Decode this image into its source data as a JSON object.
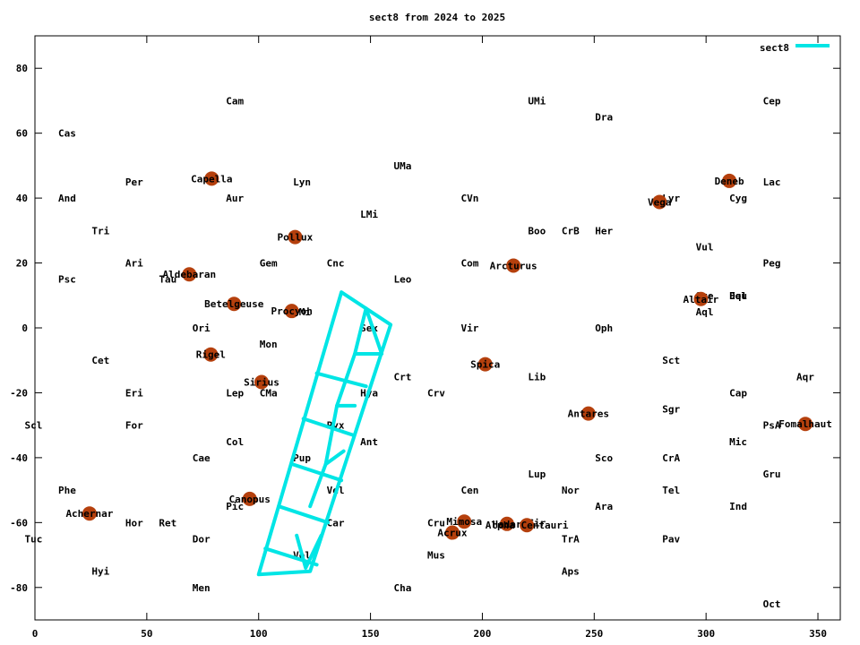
{
  "chart_data": {
    "type": "scatter",
    "title": "sect8 from 2024 to 2025",
    "xlabel": "",
    "ylabel": "",
    "xlim": [
      0,
      360
    ],
    "ylim": [
      -90,
      90
    ],
    "xticks": [
      0,
      50,
      100,
      150,
      200,
      250,
      300,
      350
    ],
    "yticks": [
      -80,
      -60,
      -40,
      -20,
      0,
      20,
      40,
      60,
      80
    ],
    "grid": false,
    "legend_position": "top-right",
    "legend": [
      {
        "name": "sect8",
        "color": "#00e5e5"
      }
    ],
    "stars": [
      {
        "name": "Capella",
        "x": 79,
        "y": 46
      },
      {
        "name": "Aldebaran",
        "x": 69,
        "y": 16.5
      },
      {
        "name": "Betelgeuse",
        "x": 89,
        "y": 7.4
      },
      {
        "name": "Rigel",
        "x": 78.6,
        "y": -8.2
      },
      {
        "name": "Sirius",
        "x": 101.3,
        "y": -16.7
      },
      {
        "name": "Canopus",
        "x": 96,
        "y": -52.7
      },
      {
        "name": "Achernar",
        "x": 24.4,
        "y": -57.2
      },
      {
        "name": "Pollux",
        "x": 116.3,
        "y": 28
      },
      {
        "name": "Procyon",
        "x": 114.8,
        "y": 5.2
      },
      {
        "name": "Arcturus",
        "x": 213.9,
        "y": 19.2
      },
      {
        "name": "Spica",
        "x": 201.3,
        "y": -11.2
      },
      {
        "name": "Antares",
        "x": 247.4,
        "y": -26.4
      },
      {
        "name": "Vega",
        "x": 279.2,
        "y": 38.8
      },
      {
        "name": "Deneb",
        "x": 310.4,
        "y": 45.3
      },
      {
        "name": "Altair",
        "x": 297.7,
        "y": 8.9
      },
      {
        "name": "Fomalhaut",
        "x": 344.4,
        "y": -29.6
      },
      {
        "name": "Mimosa",
        "x": 191.9,
        "y": -59.7
      },
      {
        "name": "Acrux",
        "x": 186.6,
        "y": -63.1
      },
      {
        "name": "Hadar",
        "x": 211,
        "y": -60.4
      },
      {
        "name": "Alpha Centauri",
        "x": 219.9,
        "y": -60.8
      }
    ],
    "star_color": "#b5400d",
    "constellation_labels": [
      {
        "text": "Cam",
        "x": 85,
        "y": 70
      },
      {
        "text": "UMi",
        "x": 220,
        "y": 70
      },
      {
        "text": "Cep",
        "x": 325,
        "y": 70
      },
      {
        "text": "Dra",
        "x": 250,
        "y": 65
      },
      {
        "text": "Cas",
        "x": 10,
        "y": 60
      },
      {
        "text": "UMa",
        "x": 160,
        "y": 50
      },
      {
        "text": "Per",
        "x": 40,
        "y": 45
      },
      {
        "text": "Lyn",
        "x": 115,
        "y": 45
      },
      {
        "text": "Lac",
        "x": 325,
        "y": 45
      },
      {
        "text": "And",
        "x": 10,
        "y": 40
      },
      {
        "text": "Aur",
        "x": 85,
        "y": 40
      },
      {
        "text": "CVn",
        "x": 190,
        "y": 40
      },
      {
        "text": "Lyr",
        "x": 280,
        "y": 40
      },
      {
        "text": "Cyg",
        "x": 310,
        "y": 40
      },
      {
        "text": "LMi",
        "x": 145,
        "y": 35
      },
      {
        "text": "Tri",
        "x": 25,
        "y": 30
      },
      {
        "text": "Boo",
        "x": 220,
        "y": 30
      },
      {
        "text": "CrB",
        "x": 235,
        "y": 30
      },
      {
        "text": "Her",
        "x": 250,
        "y": 30
      },
      {
        "text": "Vul",
        "x": 295,
        "y": 25
      },
      {
        "text": "Ari",
        "x": 40,
        "y": 20
      },
      {
        "text": "Gem",
        "x": 100,
        "y": 20
      },
      {
        "text": "Cnc",
        "x": 130,
        "y": 20
      },
      {
        "text": "Com",
        "x": 190,
        "y": 20
      },
      {
        "text": "Peg",
        "x": 325,
        "y": 20
      },
      {
        "text": "Psc",
        "x": 10,
        "y": 15
      },
      {
        "text": "Tau",
        "x": 55,
        "y": 15
      },
      {
        "text": "Leo",
        "x": 160,
        "y": 15
      },
      {
        "text": "Sge",
        "x": 295,
        "y": 10
      },
      {
        "text": "Equ",
        "x": 310,
        "y": 10
      },
      {
        "text": "Del",
        "x": 310,
        "y": 10
      },
      {
        "text": "CMi",
        "x": 115,
        "y": 5
      },
      {
        "text": "Aql",
        "x": 295,
        "y": 5
      },
      {
        "text": "Ori",
        "x": 70,
        "y": 0
      },
      {
        "text": "Sex",
        "x": 145,
        "y": 0
      },
      {
        "text": "Vir",
        "x": 190,
        "y": 0
      },
      {
        "text": "Oph",
        "x": 250,
        "y": 0
      },
      {
        "text": "Mon",
        "x": 100,
        "y": -5
      },
      {
        "text": "Cet",
        "x": 25,
        "y": -10
      },
      {
        "text": "Sct",
        "x": 280,
        "y": -10
      },
      {
        "text": "Crt",
        "x": 160,
        "y": -15
      },
      {
        "text": "Lib",
        "x": 220,
        "y": -15
      },
      {
        "text": "Aqr",
        "x": 340,
        "y": -15
      },
      {
        "text": "Eri",
        "x": 40,
        "y": -20
      },
      {
        "text": "Lep",
        "x": 85,
        "y": -20
      },
      {
        "text": "CMa",
        "x": 100,
        "y": -20
      },
      {
        "text": "Hya",
        "x": 145,
        "y": -20
      },
      {
        "text": "Crv",
        "x": 175,
        "y": -20
      },
      {
        "text": "Cap",
        "x": 310,
        "y": -20
      },
      {
        "text": "Sgr",
        "x": 280,
        "y": -25
      },
      {
        "text": "Scl",
        "x": -5,
        "y": -30
      },
      {
        "text": "For",
        "x": 40,
        "y": -30
      },
      {
        "text": "Pyx",
        "x": 130,
        "y": -30
      },
      {
        "text": "PsA",
        "x": 325,
        "y": -30
      },
      {
        "text": "Col",
        "x": 85,
        "y": -35
      },
      {
        "text": "Ant",
        "x": 145,
        "y": -35
      },
      {
        "text": "Mic",
        "x": 310,
        "y": -35
      },
      {
        "text": "Cae",
        "x": 70,
        "y": -40
      },
      {
        "text": "Pup",
        "x": 115,
        "y": -40
      },
      {
        "text": "Sco",
        "x": 250,
        "y": -40
      },
      {
        "text": "CrA",
        "x": 280,
        "y": -40
      },
      {
        "text": "Lup",
        "x": 220,
        "y": -45
      },
      {
        "text": "Gru",
        "x": 325,
        "y": -45
      },
      {
        "text": "Phe",
        "x": 10,
        "y": -50
      },
      {
        "text": "Vel",
        "x": 130,
        "y": -50
      },
      {
        "text": "Cen",
        "x": 190,
        "y": -50
      },
      {
        "text": "Nor",
        "x": 235,
        "y": -50
      },
      {
        "text": "Tel",
        "x": 280,
        "y": -50
      },
      {
        "text": "Pic",
        "x": 85,
        "y": -55
      },
      {
        "text": "Ara",
        "x": 250,
        "y": -55
      },
      {
        "text": "Ind",
        "x": 310,
        "y": -55
      },
      {
        "text": "Hor",
        "x": 40,
        "y": -60
      },
      {
        "text": "Ret",
        "x": 55,
        "y": -60
      },
      {
        "text": "Car",
        "x": 130,
        "y": -60
      },
      {
        "text": "Cru",
        "x": 175,
        "y": -60
      },
      {
        "text": "Cir",
        "x": 220,
        "y": -60
      },
      {
        "text": "Tuc",
        "x": -5,
        "y": -65
      },
      {
        "text": "Dor",
        "x": 70,
        "y": -65
      },
      {
        "text": "TrA",
        "x": 235,
        "y": -65
      },
      {
        "text": "Pav",
        "x": 280,
        "y": -65
      },
      {
        "text": "Mus",
        "x": 175,
        "y": -70
      },
      {
        "text": "Vol",
        "x": 115,
        "y": -70
      },
      {
        "text": "Hyi",
        "x": 25,
        "y": -75
      },
      {
        "text": "Aps",
        "x": 235,
        "y": -75
      },
      {
        "text": "Men",
        "x": 70,
        "y": -80
      },
      {
        "text": "Cha",
        "x": 160,
        "y": -80
      },
      {
        "text": "Oct",
        "x": 325,
        "y": -85
      }
    ],
    "series": [
      {
        "name": "sect8",
        "color": "#00e5e5",
        "segments": [
          [
            [
              137,
              11
            ],
            [
              159,
              1
            ],
            [
              123,
              -75
            ],
            [
              100,
              -76
            ],
            [
              137,
              11
            ]
          ],
          [
            [
              126,
              -14
            ],
            [
              148,
              -18
            ]
          ],
          [
            [
              120,
              -28
            ],
            [
              142,
              -33
            ]
          ],
          [
            [
              115,
              -42
            ],
            [
              137,
              -47
            ]
          ],
          [
            [
              109,
              -55
            ],
            [
              131,
              -60
            ]
          ],
          [
            [
              103,
              -68
            ],
            [
              126,
              -73
            ]
          ],
          [
            [
              148,
              6
            ],
            [
              155,
              -8
            ],
            [
              143,
              -8
            ],
            [
              148,
              6
            ]
          ],
          [
            [
              143,
              -8
            ],
            [
              135,
              -24
            ],
            [
              143,
              -24
            ]
          ],
          [
            [
              135,
              -24
            ],
            [
              130,
              -42
            ],
            [
              138,
              -38
            ]
          ],
          [
            [
              130,
              -42
            ],
            [
              123,
              -55
            ]
          ],
          [
            [
              117,
              -64
            ],
            [
              121,
              -74
            ],
            [
              128,
              -64
            ]
          ]
        ]
      }
    ]
  }
}
